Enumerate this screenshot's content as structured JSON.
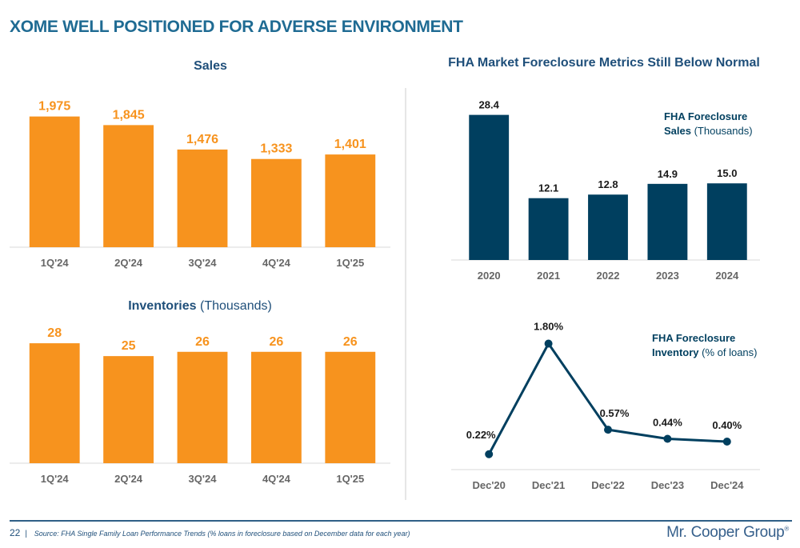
{
  "page": {
    "title": "XOME WELL POSITIONED FOR ADVERSE ENVIRONMENT",
    "page_number": "22",
    "source": "Source: FHA Single Family Loan Performance Trends (% loans in foreclosure based on December data for each year)",
    "logo": "Mr. Cooper Group",
    "logo_mark": "®"
  },
  "colors": {
    "orange": "#f7931e",
    "navy": "#003f5f",
    "title_blue": "#1f6b93",
    "axis_label": "#666666"
  },
  "chart_data": [
    {
      "id": "sales",
      "type": "bar",
      "title": "Sales",
      "title_suffix": "",
      "categories": [
        "1Q'24",
        "2Q'24",
        "3Q'24",
        "4Q'24",
        "1Q'25"
      ],
      "values": [
        1975,
        1845,
        1476,
        1333,
        1401
      ],
      "labels": [
        "1,975",
        "1,845",
        "1,476",
        "1,333",
        "1,401"
      ],
      "color": "#f7931e",
      "ylim": [
        0,
        2200
      ]
    },
    {
      "id": "inventories",
      "type": "bar",
      "title": "Inventories",
      "title_suffix": " (Thousands)",
      "categories": [
        "1Q'24",
        "2Q'24",
        "3Q'24",
        "4Q'24",
        "1Q'25"
      ],
      "values": [
        28,
        25,
        26,
        26,
        26
      ],
      "labels": [
        "28",
        "25",
        "26",
        "26",
        "26"
      ],
      "color": "#f7931e",
      "ylim": [
        0,
        31
      ]
    },
    {
      "id": "fha-sales",
      "type": "bar",
      "title": "FHA Market Foreclosure Metrics Still Below Normal",
      "legend": {
        "bold": "FHA Foreclosure Sales",
        "light": " (Thousands)",
        "placement": "top-right"
      },
      "categories": [
        "2020",
        "2021",
        "2022",
        "2023",
        "2024"
      ],
      "values": [
        28.4,
        12.1,
        12.8,
        14.9,
        15.0
      ],
      "labels": [
        "28.4",
        "12.1",
        "12.8",
        "14.9",
        "15.0"
      ],
      "color": "#003f5f",
      "ylim": [
        0,
        31
      ]
    },
    {
      "id": "fha-inventory",
      "type": "line",
      "legend": {
        "bold": "FHA Foreclosure Inventory",
        "light": " (% of loans)",
        "placement": "top-right"
      },
      "categories": [
        "Dec'20",
        "Dec'21",
        "Dec'22",
        "Dec'23",
        "Dec'24"
      ],
      "values": [
        0.22,
        1.8,
        0.57,
        0.44,
        0.4
      ],
      "labels": [
        "0.22%",
        "1.80%",
        "0.57%",
        "0.44%",
        "0.40%"
      ],
      "color": "#003f5f",
      "ylim": [
        0,
        2.0
      ]
    }
  ]
}
